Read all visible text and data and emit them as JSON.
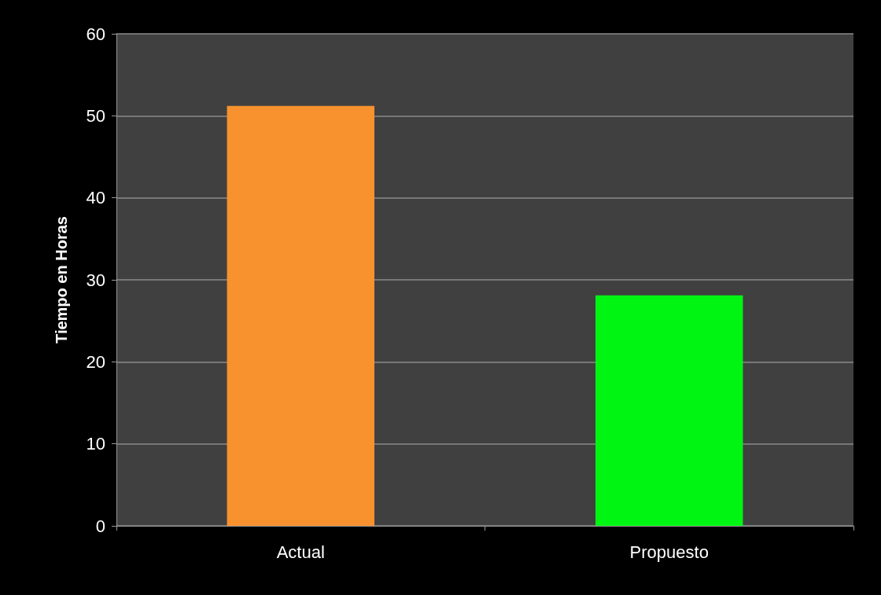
{
  "chart_data": {
    "type": "bar",
    "ylabel": "Tiempo en Horas",
    "categories": [
      "Actual",
      "Propuesto"
    ],
    "values": [
      51.2,
      28.1
    ],
    "colors": [
      "#f7922f",
      "#00f513"
    ],
    "ylim": [
      0,
      60
    ],
    "yticks": [
      0,
      10,
      20,
      30,
      40,
      50,
      60
    ],
    "grid": "y"
  }
}
